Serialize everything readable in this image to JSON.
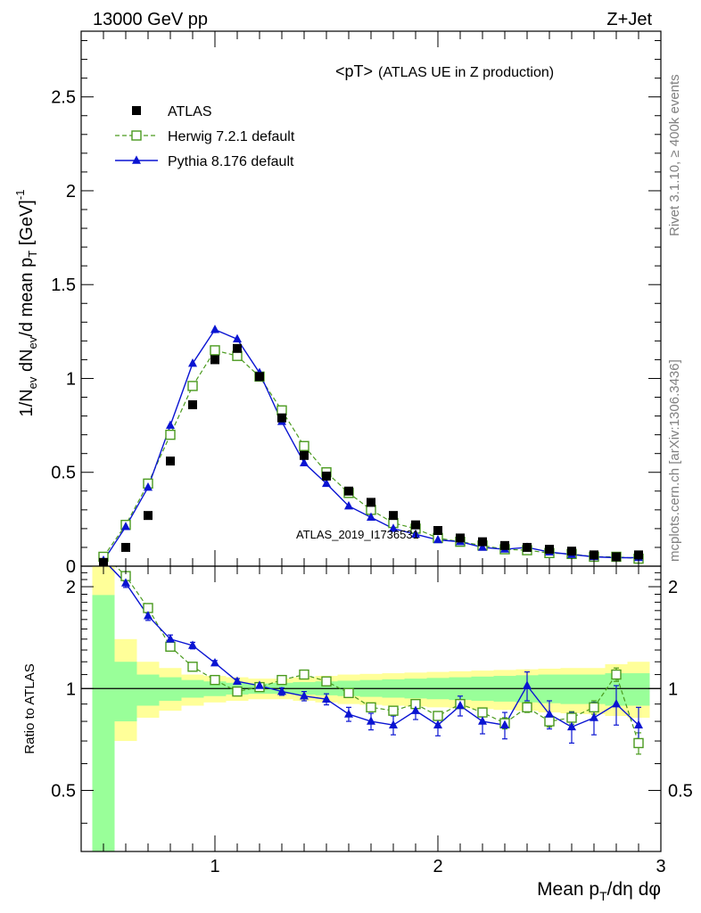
{
  "header": {
    "left": "13000 GeV pp",
    "right": "Z+Jet"
  },
  "side_labels": {
    "rivet": "Rivet 3.1.10, ≥ 400k events",
    "mcplots": "mcplots.cern.ch [arXiv:1306.3436]"
  },
  "watermark": "ATLAS_2019_I1736531",
  "colors": {
    "atlas": "#000000",
    "herwig": "#4a9a1e",
    "pythia": "#0a14d2",
    "band_inner": "#99ff99",
    "band_outer": "#ffff99"
  },
  "chart_data": [
    {
      "type": "scatter",
      "title": "<pT> (ATLAS UE in Z production)",
      "title_main": "<pT>",
      "title_sub": "(ATLAS UE in Z production)",
      "ylabel": "1/N_ev dN_ev/d mean p_T [GeV]^-1",
      "xlim": [
        0.4,
        3.0
      ],
      "ylim": [
        0,
        2.85
      ],
      "yticks": [
        0,
        0.5,
        1,
        1.5,
        2,
        2.5
      ],
      "ytick_labels": [
        "0",
        "0.5",
        "1",
        "1.5",
        "2",
        "2.5"
      ],
      "legend_position": "top-left",
      "x": [
        0.5,
        0.6,
        0.7,
        0.8,
        0.9,
        1.0,
        1.1,
        1.2,
        1.3,
        1.4,
        1.5,
        1.6,
        1.7,
        1.8,
        1.9,
        2.0,
        2.1,
        2.2,
        2.3,
        2.4,
        2.5,
        2.6,
        2.7,
        2.8,
        2.9
      ],
      "series": [
        {
          "name": "ATLAS",
          "style": "square",
          "values": [
            0.02,
            0.1,
            0.27,
            0.56,
            0.86,
            1.1,
            1.16,
            1.01,
            0.79,
            0.59,
            0.48,
            0.4,
            0.34,
            0.27,
            0.22,
            0.19,
            0.15,
            0.13,
            0.11,
            0.1,
            0.09,
            0.08,
            0.06,
            0.05,
            0.06
          ]
        },
        {
          "name": "Herwig 7.2.1 default",
          "style": "open-square-dashed",
          "values": [
            0.05,
            0.22,
            0.44,
            0.7,
            0.96,
            1.15,
            1.12,
            1.01,
            0.83,
            0.64,
            0.5,
            0.39,
            0.3,
            0.23,
            0.2,
            0.15,
            0.13,
            0.11,
            0.09,
            0.085,
            0.07,
            0.065,
            0.05,
            0.05,
            0.04
          ]
        },
        {
          "name": "Pythia 8.176 default",
          "style": "filled-triangle-solid",
          "values": [
            0.03,
            0.21,
            0.42,
            0.75,
            1.08,
            1.26,
            1.21,
            1.03,
            0.77,
            0.55,
            0.44,
            0.32,
            0.26,
            0.2,
            0.17,
            0.14,
            0.13,
            0.1,
            0.09,
            0.1,
            0.075,
            0.062,
            0.05,
            0.045,
            0.045
          ]
        }
      ]
    },
    {
      "type": "line",
      "ylabel": "Ratio to ATLAS",
      "xlabel": "Mean p_T/dη dφ",
      "xlim": [
        0.4,
        3.0
      ],
      "ylim": [
        0.33,
        2.3
      ],
      "yticks": [
        0.5,
        1,
        2
      ],
      "ytick_labels": [
        "0.5",
        "1",
        "2"
      ],
      "xticks": [
        1,
        2,
        3
      ],
      "xtick_labels": [
        "1",
        "2",
        "3"
      ],
      "reference_line": 1,
      "band_x_edges": [
        0.45,
        0.55,
        0.65,
        0.75,
        0.85,
        0.95,
        1.05,
        1.15,
        1.25,
        1.35,
        1.45,
        1.55,
        1.65,
        1.75,
        1.85,
        1.95,
        2.05,
        2.15,
        2.25,
        2.35,
        2.45,
        2.55,
        2.65,
        2.75,
        2.85,
        2.95
      ],
      "band_inner_lo": [
        0.33,
        0.8,
        0.89,
        0.92,
        0.94,
        0.95,
        0.96,
        0.965,
        0.965,
        0.96,
        0.955,
        0.95,
        0.945,
        0.94,
        0.935,
        0.93,
        0.925,
        0.92,
        0.915,
        0.91,
        0.905,
        0.9,
        0.9,
        0.89,
        0.89
      ],
      "band_inner_hi": [
        1.89,
        1.2,
        1.1,
        1.08,
        1.06,
        1.05,
        1.04,
        1.035,
        1.04,
        1.045,
        1.05,
        1.055,
        1.06,
        1.065,
        1.07,
        1.075,
        1.08,
        1.085,
        1.09,
        1.095,
        1.1,
        1.1,
        1.1,
        1.11,
        1.11
      ],
      "band_outer_lo": [
        0.33,
        0.7,
        0.82,
        0.86,
        0.89,
        0.91,
        0.92,
        0.93,
        0.93,
        0.92,
        0.91,
        0.9,
        0.895,
        0.89,
        0.885,
        0.88,
        0.875,
        0.87,
        0.865,
        0.86,
        0.85,
        0.845,
        0.84,
        0.83,
        0.82
      ],
      "band_outer_hi": [
        2.3,
        1.4,
        1.2,
        1.15,
        1.1,
        1.09,
        1.08,
        1.07,
        1.07,
        1.08,
        1.09,
        1.1,
        1.105,
        1.11,
        1.115,
        1.12,
        1.125,
        1.13,
        1.135,
        1.14,
        1.145,
        1.15,
        1.15,
        1.18,
        1.2
      ],
      "x": [
        0.5,
        0.6,
        0.7,
        0.8,
        0.9,
        1.0,
        1.1,
        1.2,
        1.3,
        1.4,
        1.5,
        1.6,
        1.7,
        1.8,
        1.9,
        2.0,
        2.1,
        2.2,
        2.3,
        2.4,
        2.5,
        2.6,
        2.7,
        2.8,
        2.9
      ],
      "series": [
        {
          "name": "Herwig 7.2.1 default",
          "style": "open-square-dashed",
          "values": [
            2.5,
            2.15,
            1.73,
            1.33,
            1.16,
            1.06,
            0.98,
            1.01,
            1.06,
            1.1,
            1.05,
            0.97,
            0.88,
            0.86,
            0.9,
            0.83,
            0.9,
            0.85,
            0.79,
            0.88,
            0.8,
            0.82,
            0.88,
            1.1,
            0.69
          ],
          "errors": [
            0.05,
            0.04,
            0.03,
            0.02,
            0.015,
            0.01,
            0.01,
            0.01,
            0.012,
            0.015,
            0.015,
            0.017,
            0.02,
            0.022,
            0.025,
            0.025,
            0.025,
            0.025,
            0.03,
            0.03,
            0.03,
            0.035,
            0.04,
            0.05,
            0.05
          ]
        },
        {
          "name": "Pythia 8.176 default",
          "style": "filled-triangle-solid",
          "values": [
            2.4,
            2.05,
            1.64,
            1.4,
            1.34,
            1.19,
            1.05,
            1.02,
            0.98,
            0.95,
            0.93,
            0.84,
            0.8,
            0.78,
            0.86,
            0.78,
            0.89,
            0.8,
            0.78,
            1.02,
            0.84,
            0.77,
            0.82,
            0.9,
            0.78
          ],
          "errors": [
            0.08,
            0.06,
            0.05,
            0.04,
            0.03,
            0.02,
            0.02,
            0.02,
            0.025,
            0.03,
            0.035,
            0.04,
            0.045,
            0.05,
            0.05,
            0.055,
            0.06,
            0.065,
            0.07,
            0.1,
            0.08,
            0.08,
            0.09,
            0.12,
            0.1
          ]
        }
      ]
    }
  ]
}
